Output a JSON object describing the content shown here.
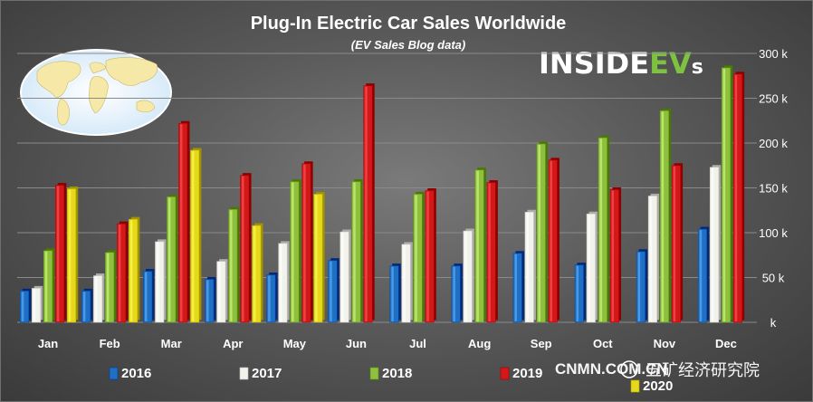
{
  "chart_data": {
    "type": "bar",
    "title": "Plug-In Electric Car Sales Worldwide",
    "subtitle": "(EV Sales Blog data)",
    "categories": [
      "Jan",
      "Feb",
      "Mar",
      "Apr",
      "May",
      "Jun",
      "Jul",
      "Aug",
      "Sep",
      "Oct",
      "Nov",
      "Dec"
    ],
    "ylim": [
      0,
      300000
    ],
    "yticks": [
      0,
      50000,
      100000,
      150000,
      200000,
      250000,
      300000
    ],
    "ytick_labels": [
      "k",
      "50 k",
      "100 k",
      "150 k",
      "200 k",
      "250 k",
      "300 k"
    ],
    "y_axis_position": "right",
    "grid": true,
    "legend_placement": "bottom",
    "series": [
      {
        "name": "2016",
        "color": "#1f6fc4",
        "values": [
          35000,
          35000,
          57000,
          48000,
          53000,
          69000,
          63000,
          63000,
          77000,
          64000,
          79000,
          104000
        ]
      },
      {
        "name": "2017",
        "color": "#f2f2ec",
        "values": [
          38000,
          52000,
          90000,
          68000,
          88000,
          101000,
          87000,
          102000,
          123000,
          121000,
          141000,
          173000
        ]
      },
      {
        "name": "2018",
        "color": "#8fbf3f",
        "values": [
          80000,
          78000,
          140000,
          126000,
          157000,
          157000,
          143000,
          170000,
          199000,
          206000,
          236000,
          284000
        ]
      },
      {
        "name": "2019",
        "color": "#d3181a",
        "values": [
          153000,
          110000,
          222000,
          164000,
          177000,
          264000,
          147000,
          156000,
          181000,
          148000,
          175000,
          277000
        ]
      },
      {
        "name": "2020",
        "color": "#e6d81a",
        "values": [
          149000,
          115000,
          192000,
          108000,
          143000,
          null,
          null,
          null,
          null,
          null,
          null,
          null
        ]
      }
    ]
  },
  "logo": {
    "part1": "INSIDE",
    "part2": "EV",
    "part3": "s"
  },
  "watermark": {
    "latin": "CNMN.COM.CN",
    "cjk": "五矿经济研究院"
  },
  "icons": {
    "map": "world-map-icon",
    "watermark": "wechat-icon"
  }
}
